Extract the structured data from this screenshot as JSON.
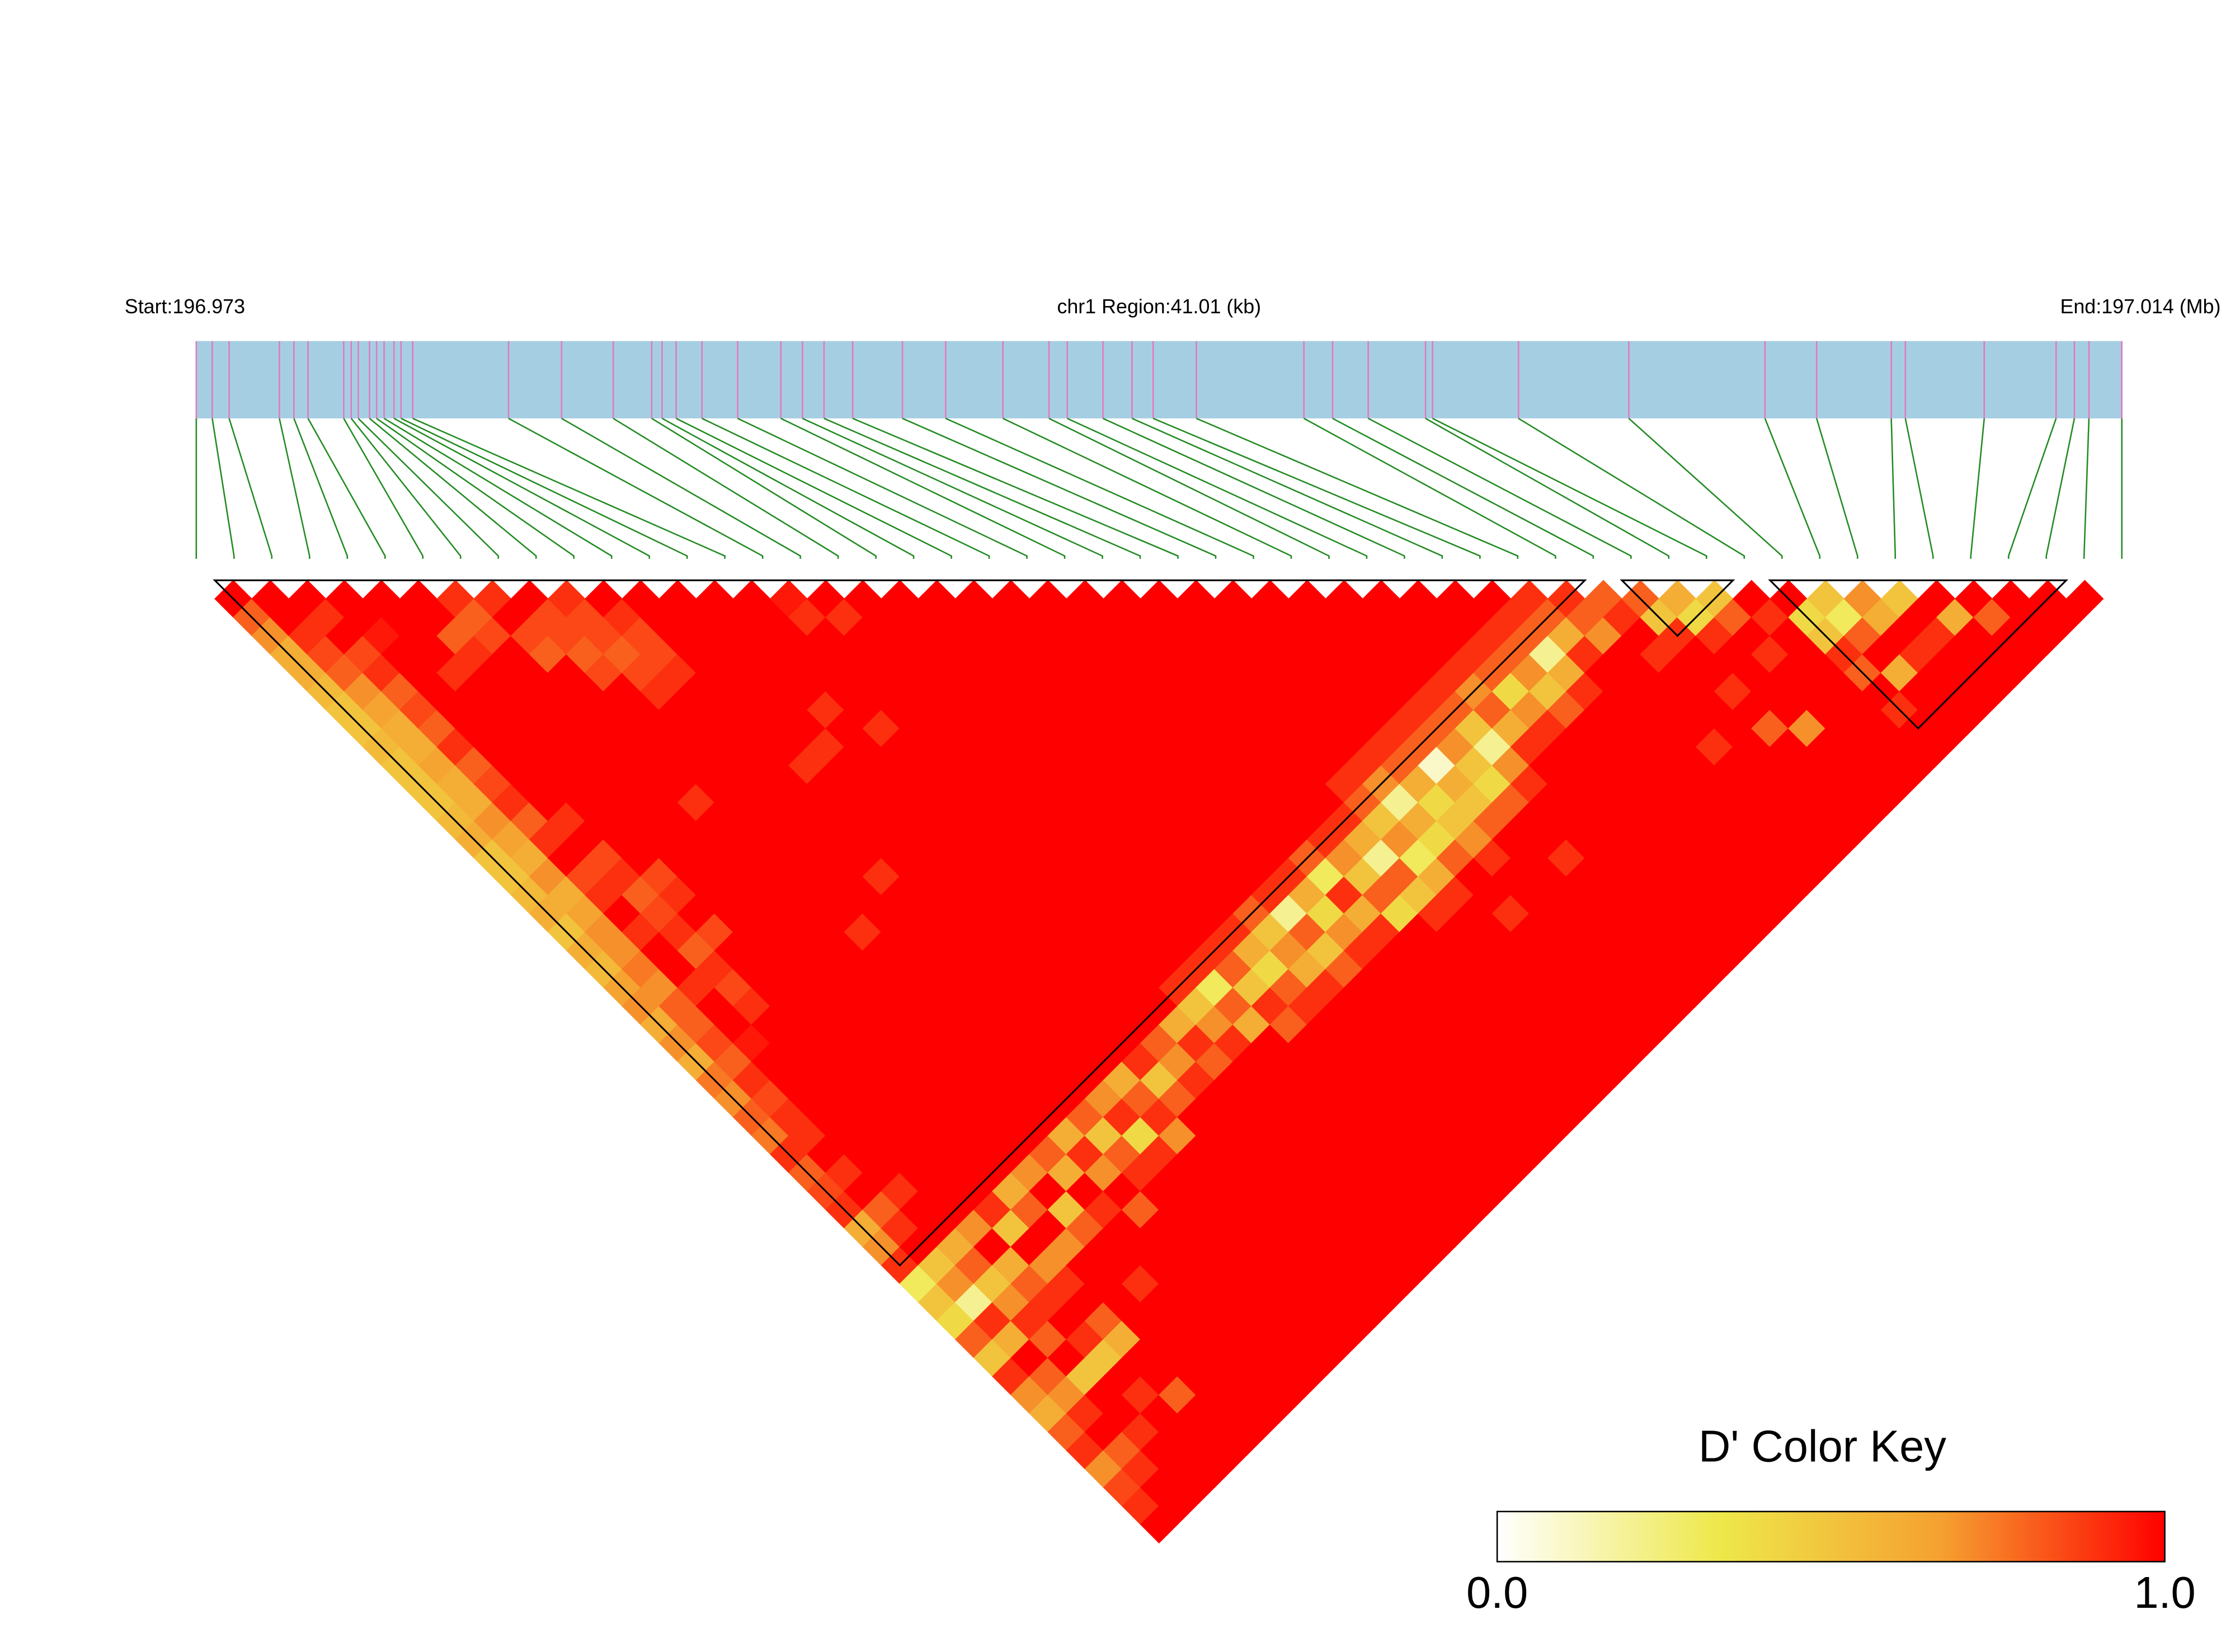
{
  "chart_data": {
    "type": "ld-heatmap",
    "start_label": "Start:196.973",
    "region_label": "chr1 Region:41.01 (kb)",
    "end_label": "End:197.014 (Mb)",
    "xlim": [
      0,
      41.01
    ],
    "snp_positions": [
      0,
      0.34,
      0.7,
      1.77,
      2.08,
      2.38,
      3.14,
      3.3,
      3.45,
      3.69,
      3.84,
      4.0,
      4.21,
      4.36,
      4.61,
      6.65,
      7.78,
      8.88,
      9.7,
      9.92,
      10.22,
      10.77,
      11.53,
      12.45,
      12.91,
      13.37,
      13.98,
      15.04,
      15.96,
      17.18,
      18.16,
      18.55,
      19.31,
      19.93,
      20.38,
      21.3,
      23.59,
      24.2,
      24.96,
      26.18,
      26.33,
      28.16,
      30.51,
      33.41,
      34.51,
      36.1,
      36.4,
      38.08,
      39.61,
      40.0,
      40.31,
      41.01
    ],
    "d_prime": [
      [
        1,
        0.8,
        0.7,
        0.6,
        0.6,
        0.55,
        0.5,
        0.5,
        0.55,
        0.5,
        0.5,
        0.5,
        0.55,
        0.6,
        0.5,
        0.5,
        0.55,
        0.6,
        0.5,
        0.6,
        0.55,
        0.65,
        0.7,
        0.6,
        0.7,
        0.6,
        0.75,
        0.7,
        0.8,
        0.75,
        0.9,
        0.8,
        0.85,
        0.9,
        0.6,
        0.7,
        0.9,
        0.3,
        0.5,
        0.4,
        0.8,
        0.5,
        0.9,
        0.7,
        0.6,
        0.8,
        0.9,
        0.7,
        0.85,
        0.9,
        1
      ],
      [
        1,
        1,
        0.9,
        0.85,
        0.8,
        0.7,
        0.65,
        0.6,
        0.6,
        0.65,
        0.6,
        0.6,
        0.7,
        0.65,
        0.6,
        0.7,
        0.6,
        0.65,
        0.7,
        0.7,
        0.75,
        0.7,
        0.8,
        0.8,
        0.85,
        0.8,
        0.9,
        0.85,
        0.9,
        0.9,
        1,
        0.9,
        1,
        0.8,
        0.9,
        1,
        0.5,
        0.7,
        0.2,
        0.9,
        0.6,
        1,
        0.8,
        0.7,
        0.9,
        1,
        0.8,
        0.9,
        1,
        1
      ],
      [
        1,
        0.9,
        1,
        0.85,
        0.9,
        0.8,
        0.85,
        0.8,
        0.9,
        0.8,
        0.85,
        0.9,
        0.8,
        0.9,
        1,
        0.85,
        0.9,
        1,
        0.9,
        1,
        1,
        0.9,
        1,
        1,
        0.95,
        1,
        1,
        1,
        1,
        1,
        1,
        1,
        0.9,
        1,
        1,
        0.6,
        0.8,
        0.5,
        0.7,
        0.9,
        0.8,
        1,
        0.5,
        1,
        1,
        0.9,
        1,
        1,
        1
      ],
      [
        1,
        1,
        0.95,
        1,
        1,
        1,
        1,
        1,
        1,
        1,
        1,
        1,
        0.9,
        1,
        0.85,
        0.9,
        0.8,
        0.85,
        0.9,
        0.8,
        0.9,
        0.85,
        0.9,
        1,
        1,
        1,
        1,
        1,
        1,
        1,
        1,
        1,
        1,
        1,
        0.7,
        1,
        0.6,
        0.8,
        0.9,
        1,
        0.9,
        0.5,
        1,
        0.9,
        1,
        1,
        1,
        1
      ],
      [
        1,
        1,
        1,
        1,
        0.9,
        1,
        1,
        1,
        1,
        1,
        1,
        1,
        1,
        1,
        1,
        0.85,
        0.9,
        1,
        0.85,
        1,
        1,
        1,
        1,
        1,
        1,
        1,
        1,
        1,
        1,
        1,
        1,
        1,
        1,
        0.9,
        0.5,
        1,
        0.7,
        0.9,
        1,
        0.8,
        0.6,
        1,
        1,
        0.8,
        1,
        1,
        1
      ],
      [
        1,
        1,
        0.8,
        0.9,
        1,
        1,
        1,
        1,
        1,
        1,
        1,
        1,
        1,
        1,
        1,
        1,
        1,
        1,
        1,
        1,
        1,
        1,
        1,
        1,
        1,
        1,
        1,
        1,
        1,
        1,
        1,
        1,
        0.6,
        0.8,
        1,
        0.7,
        1,
        1,
        1,
        1,
        1,
        1,
        1,
        1,
        1,
        1
      ],
      [
        0.9,
        0.8,
        0.85,
        1,
        1,
        1,
        1,
        1,
        1,
        1,
        1,
        1,
        1,
        1,
        1,
        1,
        1,
        1,
        1,
        1,
        1,
        1,
        1,
        1,
        1,
        1,
        1,
        1,
        1,
        1,
        1,
        0.7,
        1,
        0.5,
        0.8,
        1,
        1,
        0.9,
        1,
        1,
        1,
        1,
        1,
        1,
        1
      ],
      [
        0.9,
        1,
        0.85,
        0.8,
        1,
        1,
        1,
        1,
        1,
        1,
        1,
        0.9,
        1,
        1,
        1,
        1,
        1,
        1,
        1,
        1,
        1,
        1,
        1,
        1,
        1,
        1,
        1,
        1,
        1,
        1,
        0.8,
        0.6,
        1,
        0.9,
        1,
        1,
        1,
        1,
        1,
        1,
        1,
        1,
        1,
        1
      ],
      [
        1,
        0.85,
        0.85,
        0.8,
        0.85,
        1,
        1,
        1,
        1,
        1,
        1,
        1,
        1,
        1,
        1,
        1,
        1,
        1,
        0.9,
        1,
        1,
        1,
        1,
        1,
        1,
        1,
        1,
        1,
        1,
        0.6,
        0.9,
        0.7,
        1,
        0.8,
        1,
        1,
        1,
        1,
        1,
        1,
        1,
        1,
        1
      ],
      [
        0.9,
        0.85,
        0.85,
        0.8,
        0.85,
        0.9,
        1,
        1,
        1,
        1,
        1,
        1,
        1,
        1,
        1,
        1,
        1,
        1,
        1,
        1,
        1,
        1,
        1,
        1,
        1,
        1,
        1,
        1,
        0.8,
        0.5,
        0.8,
        0.9,
        1,
        1,
        1,
        1,
        1,
        1,
        1,
        1,
        1,
        1
      ],
      [
        1,
        0.9,
        0.85,
        0.85,
        0.9,
        1,
        1,
        1,
        1,
        1,
        1,
        1,
        1,
        1,
        1,
        0.9,
        1,
        1,
        1,
        1,
        1,
        1,
        1,
        1,
        1,
        1,
        1,
        0.7,
        0.9,
        0.4,
        0.9,
        1,
        1,
        1,
        1,
        1,
        1,
        1,
        1,
        1,
        1
      ],
      [
        1,
        1,
        1,
        1,
        1,
        1,
        1,
        1,
        1,
        0.9,
        1,
        1,
        1,
        1,
        1,
        1,
        1,
        1,
        1,
        1,
        1,
        1,
        1,
        1,
        1,
        1,
        0.6,
        0.8,
        0.9,
        0.7,
        1,
        1,
        1,
        1,
        1,
        1,
        1,
        1,
        1,
        1
      ],
      [
        1,
        1,
        1,
        1,
        1,
        1,
        1,
        1,
        0.9,
        1,
        1,
        1,
        1,
        1,
        1,
        1,
        1,
        1,
        1,
        1,
        1,
        1,
        1,
        1,
        1,
        0.9,
        0.5,
        0.8,
        1,
        1,
        1,
        1,
        1,
        1,
        1,
        1,
        1,
        1,
        1
      ],
      [
        1,
        1,
        1,
        1,
        1,
        1,
        0.9,
        1,
        1,
        1,
        1,
        1,
        1,
        1,
        1,
        1,
        1,
        1,
        1,
        1,
        1,
        1,
        1,
        1,
        0.8,
        0.7,
        0.9,
        1,
        1,
        1,
        1,
        1,
        1,
        1,
        1,
        1,
        1,
        1
      ],
      [
        1,
        1,
        1,
        1,
        1,
        1,
        1,
        0.9,
        1,
        1,
        1,
        1,
        1,
        1,
        1,
        1,
        1,
        1,
        1,
        1,
        1,
        1,
        1,
        0.6,
        0.9,
        0.8,
        1,
        1,
        1,
        1,
        1,
        1,
        1,
        1,
        1,
        1,
        1
      ],
      [
        0.95,
        0.9,
        1,
        1,
        1,
        1,
        1,
        1,
        1,
        1,
        1,
        1,
        1,
        1,
        1,
        1,
        1,
        1,
        1,
        1,
        1,
        0.9,
        0.5,
        0.7,
        0.9,
        1,
        1,
        1,
        1,
        1,
        1,
        1,
        1,
        1,
        1,
        1
      ],
      [
        1,
        0.9,
        1,
        1,
        1,
        1,
        1,
        1,
        1,
        1,
        1,
        1,
        1,
        1,
        1,
        1,
        1,
        1,
        1,
        1,
        0.9,
        0.3,
        0.8,
        0.6,
        1,
        1,
        1,
        1,
        1,
        1,
        1,
        1,
        1,
        1,
        1
      ],
      [
        1,
        1,
        1,
        1,
        1,
        1,
        1,
        1,
        1,
        1,
        1,
        1,
        1,
        1,
        1,
        1,
        1,
        1,
        1,
        0.9,
        0.8,
        0.5,
        0.9,
        0.8,
        1,
        1,
        1,
        1,
        1,
        1,
        1,
        1,
        1,
        1
      ],
      [
        1,
        1,
        1,
        1,
        1,
        1,
        1,
        1,
        1,
        1,
        1,
        1,
        1,
        1,
        1,
        1,
        1,
        1,
        0.9,
        0.6,
        0.4,
        0.8,
        0.9,
        1,
        1,
        1,
        1,
        1,
        1,
        1,
        1,
        1,
        1
      ],
      [
        1,
        1,
        1,
        1,
        1,
        1,
        1,
        1,
        1,
        1,
        1,
        1,
        1,
        1,
        1,
        1,
        1,
        0.8,
        0.5,
        0.7,
        0.6,
        0.9,
        1,
        1,
        1,
        1,
        1,
        1,
        1,
        1,
        1,
        1
      ],
      [
        1,
        1,
        1,
        1,
        1,
        1,
        1,
        1,
        1,
        1,
        1,
        1,
        1,
        1,
        1,
        1,
        0.9,
        0.2,
        0.8,
        0.5,
        0.8,
        1,
        1,
        1,
        1,
        1,
        1,
        1,
        1,
        1,
        1
      ],
      [
        1,
        1,
        1,
        1,
        1,
        1,
        1,
        1,
        1,
        1,
        1,
        1,
        1,
        1,
        1,
        0.9,
        0.6,
        0.4,
        0.7,
        0.9,
        1,
        1,
        1,
        1,
        1,
        1,
        1,
        1,
        1,
        1
      ],
      [
        1,
        1,
        1,
        1,
        1,
        1,
        1,
        1,
        1,
        1,
        1,
        1,
        1,
        1,
        0.8,
        0.3,
        0.9,
        0.6,
        0.9,
        1,
        1,
        1,
        1,
        1,
        1,
        1,
        1,
        1,
        1
      ],
      [
        1,
        1,
        1,
        1,
        1,
        1,
        1,
        1,
        1,
        1,
        1,
        1,
        1,
        0.9,
        0.7,
        0.5,
        0.8,
        0.4,
        1,
        1,
        1,
        1,
        1,
        1,
        1,
        1,
        1,
        1
      ],
      [
        1,
        1,
        1,
        1,
        1,
        1,
        1,
        1,
        1,
        1,
        1,
        1,
        0.9,
        0.6,
        0.2,
        0.8,
        0.5,
        0.9,
        1,
        1,
        1,
        1,
        1,
        1,
        1,
        1,
        1
      ],
      [
        1,
        1,
        1,
        1,
        1,
        1,
        1,
        1,
        1,
        1,
        0.9,
        0.8,
        0.5,
        0.7,
        0.3,
        0.6,
        0.9,
        1,
        1,
        1,
        1,
        1,
        1,
        1,
        1,
        1
      ],
      [
        1,
        1,
        1,
        1,
        1,
        1,
        1,
        1,
        1,
        0.9,
        0.7,
        0.2,
        0.6,
        0.4,
        0.8,
        1,
        1,
        0.9,
        1,
        1,
        1,
        1,
        1,
        1,
        1
      ],
      [
        1,
        1,
        1,
        1,
        1,
        1,
        1,
        1,
        0.9,
        0.8,
        0.6,
        0.4,
        0.5,
        0.7,
        0.9,
        1,
        1,
        1,
        1,
        1,
        1,
        1,
        1,
        1
      ],
      [
        1,
        1,
        1,
        1,
        1,
        1,
        1,
        0.9,
        0.8,
        0.1,
        0.6,
        0.5,
        0.8,
        1,
        1,
        1,
        1,
        1,
        1,
        1,
        1,
        1,
        1
      ],
      [
        1,
        1,
        1,
        1,
        1,
        1,
        0.9,
        0.8,
        0.7,
        0.5,
        0.4,
        0.8,
        1,
        1,
        0.9,
        1,
        1,
        1,
        1,
        1,
        1,
        1
      ],
      [
        1,
        1,
        1,
        1,
        1,
        0.9,
        0.8,
        0.5,
        0.2,
        0.7,
        0.9,
        1,
        1,
        1,
        1,
        1,
        1,
        1,
        1,
        1,
        1
      ],
      [
        1,
        1,
        1,
        1,
        0.9,
        0.7,
        0.8,
        0.6,
        0.9,
        1,
        1,
        1,
        1,
        1,
        1,
        1,
        1,
        1,
        1,
        1
      ],
      [
        1,
        1,
        1,
        0.9,
        0.8,
        0.4,
        0.7,
        0.9,
        1,
        1,
        1,
        1,
        1,
        1,
        1,
        1,
        1,
        1,
        1
      ],
      [
        1,
        1,
        0.9,
        0.8,
        0.7,
        0.5,
        0.8,
        1,
        1,
        1,
        1,
        1,
        1,
        1,
        1,
        1,
        1,
        1
      ],
      [
        1,
        0.9,
        0.8,
        0.2,
        0.6,
        0.9,
        1,
        1,
        1,
        1,
        1,
        1,
        1,
        1,
        1,
        1,
        1
      ],
      [
        0.9,
        0.8,
        0.6,
        0.9,
        1,
        1,
        1,
        1,
        1,
        1,
        1,
        1,
        1,
        1,
        1,
        1
      ],
      [
        0.9,
        0.8,
        0.7,
        1,
        1,
        1,
        1,
        1,
        0.9,
        1,
        1,
        1,
        1,
        1,
        1
      ],
      [
        0.8,
        0.9,
        1,
        0.9,
        1,
        1,
        1,
        1,
        1,
        1,
        1,
        1,
        1,
        1
      ],
      [
        0.8,
        0.5,
        0.9,
        1,
        1,
        0.9,
        1,
        0.8,
        1,
        1,
        1,
        1,
        1
      ],
      [
        0.6,
        0.4,
        0.9,
        1,
        1,
        1,
        1,
        0.7,
        1,
        1,
        1,
        1
      ],
      [
        0.5,
        0.8,
        1,
        0.9,
        1,
        1,
        1,
        1,
        1,
        1,
        1
      ],
      [
        1,
        0.9,
        1,
        1,
        1,
        1,
        1,
        1,
        1,
        1
      ],
      [
        1,
        0.4,
        0.5,
        0.9,
        0.8,
        1,
        0.9,
        1,
        1
      ],
      [
        0.5,
        0.3,
        0.8,
        1,
        0.6,
        1,
        1,
        1
      ],
      [
        0.7,
        0.6,
        1,
        0.9,
        1,
        1,
        1
      ],
      [
        0.5,
        1,
        0.9,
        1,
        1,
        1
      ],
      [
        1,
        0.6,
        1,
        1,
        1
      ],
      [
        1,
        0.8,
        1,
        1
      ],
      [
        1,
        1,
        1
      ],
      [
        1,
        1
      ],
      [
        1
      ]
    ],
    "blocks": [
      [
        0,
        37
      ],
      [
        38,
        41
      ],
      [
        42,
        50
      ]
    ],
    "color_scale": [
      "#ffffff",
      "#eee84a",
      "#f5a030",
      "#ff0000"
    ],
    "color_key": {
      "title": "D' Color Key",
      "lim": [
        0,
        1
      ],
      "ticks": [
        {
          "value": 0,
          "label": "0.0"
        },
        {
          "value": 1,
          "label": "1.0"
        }
      ]
    },
    "bar_color": "#a6cee3",
    "snp_line_color": "#e377c2",
    "connector_color": "#228b22",
    "block_color": "#000000"
  }
}
